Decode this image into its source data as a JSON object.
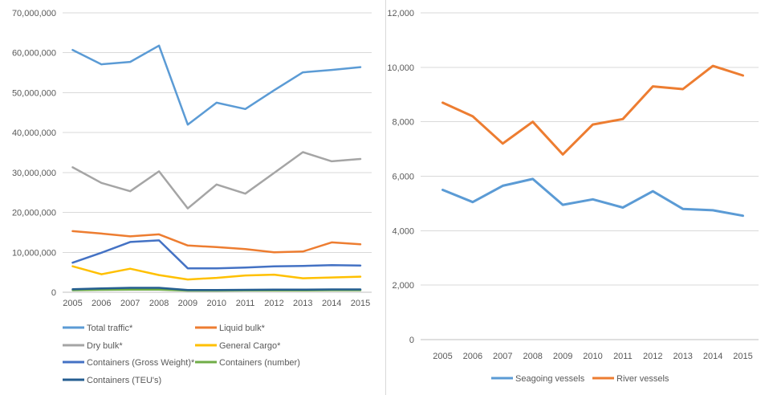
{
  "page": {
    "background": "#FFFFFF",
    "divider_color": "#D9D9D9",
    "gridline_color": "#D9D9D9",
    "axis_line_color": "#BFBFBF",
    "text_color": "#595959"
  },
  "chart_data": [
    {
      "name": "cargo-traffic-by-type",
      "type": "line",
      "categories": [
        "2005",
        "2006",
        "2007",
        "2008",
        "2009",
        "2010",
        "2011",
        "2012",
        "2013",
        "2014",
        "2015"
      ],
      "ylim": [
        0,
        70000000
      ],
      "y_tick_step": 10000000,
      "y_ticks": [
        "0",
        "10,000,000",
        "20,000,000",
        "30,000,000",
        "40,000,000",
        "50,000,000",
        "60,000,000",
        "70,000,000"
      ],
      "grid": "horizontal",
      "legend_position": "bottom-left-two-columns",
      "series": [
        {
          "name": "Total traffic*",
          "color": "#5B9BD5",
          "values": [
            60700000,
            57100000,
            57700000,
            61800000,
            42000000,
            47500000,
            45900000,
            50600000,
            55100000,
            55700000,
            56400000
          ]
        },
        {
          "name": "Liquid bulk*",
          "color": "#ED7D31",
          "values": [
            15300000,
            14700000,
            14000000,
            14500000,
            11700000,
            11300000,
            10800000,
            10000000,
            10200000,
            12500000,
            12000000
          ]
        },
        {
          "name": "Dry bulk*",
          "color": "#A5A5A5",
          "values": [
            31300000,
            27400000,
            25300000,
            30300000,
            21000000,
            27000000,
            24700000,
            29900000,
            35100000,
            32800000,
            33400000
          ]
        },
        {
          "name": "General Cargo*",
          "color": "#FFC000",
          "values": [
            6500000,
            4500000,
            5900000,
            4300000,
            3200000,
            3600000,
            4200000,
            4400000,
            3500000,
            3700000,
            3900000
          ]
        },
        {
          "name": "Containers (Gross Weight)*",
          "color": "#4472C4",
          "values": [
            7400000,
            9900000,
            12600000,
            13000000,
            6000000,
            6000000,
            6200000,
            6500000,
            6600000,
            6800000,
            6700000
          ]
        },
        {
          "name": "Containers (number)",
          "color": "#70AD47",
          "values": [
            500000,
            600000,
            650000,
            650000,
            400000,
            400000,
            450000,
            450000,
            450000,
            500000,
            500000
          ]
        },
        {
          "name": "Containers (TEU's)",
          "color": "#255E91",
          "values": [
            750000,
            950000,
            1100000,
            1100000,
            550000,
            550000,
            600000,
            650000,
            650000,
            700000,
            700000
          ]
        }
      ]
    },
    {
      "name": "vessel-calls",
      "type": "line",
      "categories": [
        "2005",
        "2006",
        "2007",
        "2008",
        "2009",
        "2010",
        "2011",
        "2012",
        "2013",
        "2014",
        "2015"
      ],
      "ylim": [
        0,
        12000
      ],
      "y_tick_step": 2000,
      "y_ticks": [
        "0",
        "2,000",
        "4,000",
        "6,000",
        "8,000",
        "10,000",
        "12,000"
      ],
      "grid": "horizontal",
      "legend_position": "bottom-center",
      "series": [
        {
          "name": "Seagoing vessels",
          "color": "#5B9BD5",
          "values": [
            5500,
            5050,
            5650,
            5900,
            4950,
            5150,
            4850,
            5450,
            4800,
            4750,
            4550
          ]
        },
        {
          "name": "River vessels",
          "color": "#ED7D31",
          "values": [
            8700,
            8200,
            7200,
            8000,
            6800,
            7900,
            8100,
            9300,
            9200,
            10050,
            9700
          ]
        }
      ]
    }
  ]
}
